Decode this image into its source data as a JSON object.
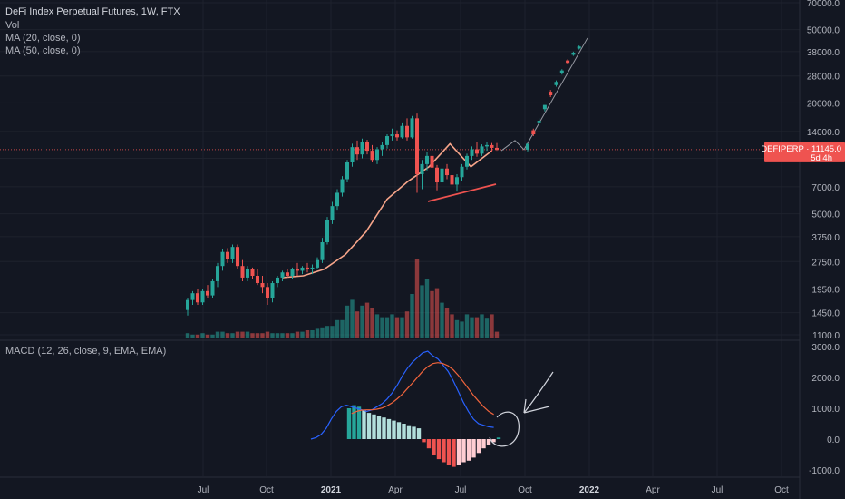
{
  "header": {
    "title": "DeFi Index Perpetual Futures, 1W, FTX",
    "vol_label": "Vol",
    "ma20_label": "MA (20, close, 0)",
    "ma50_label": "MA (50, close, 0)",
    "macd_label": "MACD (12, 26, close, 9, EMA, EMA)"
  },
  "price_tag": {
    "symbol_price": "DEFIPERP  ·  11145.0",
    "countdown": "5d 4h"
  },
  "colors": {
    "background": "#131722",
    "up": "#26a69a",
    "down": "#ef5350",
    "ma_line": "#f7a58a",
    "macd_line": "#2962ff",
    "signal_line": "#f0643c",
    "drawing": "#9598a1",
    "price_tag": "#ef5350"
  },
  "chart_data": {
    "type": "candlestick",
    "price_scale": "log",
    "y_ticks": [
      "70000.0",
      "50000.0",
      "38000.0",
      "28000.0",
      "20000.0",
      "14000.0",
      "10000.0",
      "7000.0",
      "5000.0",
      "3750.0",
      "2750.0",
      "1950.0",
      "1450.0",
      "1100.0"
    ],
    "x_ticks": [
      "Jul",
      "Oct",
      "2021",
      "Apr",
      "Jul",
      "Oct",
      "2022",
      "Apr",
      "Jul",
      "Oct"
    ],
    "candles": [
      {
        "o": 1500,
        "h": 1750,
        "l": 1400,
        "c": 1700
      },
      {
        "o": 1700,
        "h": 1900,
        "l": 1600,
        "c": 1850
      },
      {
        "o": 1850,
        "h": 1950,
        "l": 1600,
        "c": 1650
      },
      {
        "o": 1650,
        "h": 1950,
        "l": 1600,
        "c": 1900
      },
      {
        "o": 1900,
        "h": 2050,
        "l": 1750,
        "c": 1800
      },
      {
        "o": 1800,
        "h": 2200,
        "l": 1750,
        "c": 2150
      },
      {
        "o": 2150,
        "h": 2700,
        "l": 2000,
        "c": 2600
      },
      {
        "o": 2600,
        "h": 3200,
        "l": 2450,
        "c": 3100
      },
      {
        "o": 3100,
        "h": 3250,
        "l": 2700,
        "c": 2850
      },
      {
        "o": 2850,
        "h": 3400,
        "l": 2700,
        "c": 3300
      },
      {
        "o": 3300,
        "h": 3400,
        "l": 2500,
        "c": 2600
      },
      {
        "o": 2600,
        "h": 2800,
        "l": 2150,
        "c": 2250
      },
      {
        "o": 2250,
        "h": 2600,
        "l": 2150,
        "c": 2500
      },
      {
        "o": 2500,
        "h": 2550,
        "l": 2200,
        "c": 2300
      },
      {
        "o": 2300,
        "h": 2500,
        "l": 2050,
        "c": 2100
      },
      {
        "o": 2100,
        "h": 2300,
        "l": 1850,
        "c": 2000
      },
      {
        "o": 2000,
        "h": 2100,
        "l": 1600,
        "c": 1750
      },
      {
        "o": 1750,
        "h": 2150,
        "l": 1650,
        "c": 2100
      },
      {
        "o": 2100,
        "h": 2300,
        "l": 2000,
        "c": 2250
      },
      {
        "o": 2250,
        "h": 2450,
        "l": 2150,
        "c": 2400
      },
      {
        "o": 2400,
        "h": 2500,
        "l": 2250,
        "c": 2300
      },
      {
        "o": 2300,
        "h": 2550,
        "l": 2200,
        "c": 2500
      },
      {
        "o": 2500,
        "h": 2700,
        "l": 2300,
        "c": 2450
      },
      {
        "o": 2450,
        "h": 2600,
        "l": 2350,
        "c": 2550
      },
      {
        "o": 2550,
        "h": 2700,
        "l": 2400,
        "c": 2500
      },
      {
        "o": 2500,
        "h": 2650,
        "l": 2350,
        "c": 2550
      },
      {
        "o": 2550,
        "h": 2900,
        "l": 2500,
        "c": 2800
      },
      {
        "o": 2800,
        "h": 3700,
        "l": 2700,
        "c": 3500
      },
      {
        "o": 3500,
        "h": 4800,
        "l": 3400,
        "c": 4600
      },
      {
        "o": 4600,
        "h": 5800,
        "l": 4400,
        "c": 5500
      },
      {
        "o": 5500,
        "h": 6800,
        "l": 5200,
        "c": 6500
      },
      {
        "o": 6500,
        "h": 8000,
        "l": 6200,
        "c": 7700
      },
      {
        "o": 7700,
        "h": 9800,
        "l": 7400,
        "c": 9500
      },
      {
        "o": 9500,
        "h": 12000,
        "l": 9000,
        "c": 11500
      },
      {
        "o": 11500,
        "h": 12500,
        "l": 9800,
        "c": 10500
      },
      {
        "o": 10500,
        "h": 12800,
        "l": 10000,
        "c": 12200
      },
      {
        "o": 12200,
        "h": 12600,
        "l": 10500,
        "c": 11000
      },
      {
        "o": 11000,
        "h": 11800,
        "l": 9500,
        "c": 9800
      },
      {
        "o": 9800,
        "h": 11500,
        "l": 9300,
        "c": 11200
      },
      {
        "o": 11200,
        "h": 12300,
        "l": 10300,
        "c": 11800
      },
      {
        "o": 11800,
        "h": 13500,
        "l": 11300,
        "c": 13200
      },
      {
        "o": 13200,
        "h": 14500,
        "l": 12500,
        "c": 13500
      },
      {
        "o": 13500,
        "h": 14200,
        "l": 12500,
        "c": 13000
      },
      {
        "o": 13000,
        "h": 15500,
        "l": 12800,
        "c": 15000
      },
      {
        "o": 15000,
        "h": 16500,
        "l": 12500,
        "c": 13000
      },
      {
        "o": 13000,
        "h": 17000,
        "l": 12800,
        "c": 16500
      },
      {
        "o": 16500,
        "h": 17500,
        "l": 6500,
        "c": 8200
      },
      {
        "o": 8200,
        "h": 9800,
        "l": 6800,
        "c": 9300
      },
      {
        "o": 9300,
        "h": 10800,
        "l": 8600,
        "c": 10300
      },
      {
        "o": 10300,
        "h": 10600,
        "l": 8600,
        "c": 8900
      },
      {
        "o": 8900,
        "h": 9200,
        "l": 6700,
        "c": 7400
      },
      {
        "o": 7400,
        "h": 9100,
        "l": 6300,
        "c": 8800
      },
      {
        "o": 8800,
        "h": 9300,
        "l": 7700,
        "c": 8100
      },
      {
        "o": 8100,
        "h": 8600,
        "l": 6800,
        "c": 7200
      },
      {
        "o": 7200,
        "h": 8200,
        "l": 6600,
        "c": 7900
      },
      {
        "o": 7900,
        "h": 9300,
        "l": 7500,
        "c": 9000
      },
      {
        "o": 9000,
        "h": 10600,
        "l": 8700,
        "c": 10300
      },
      {
        "o": 10300,
        "h": 11600,
        "l": 9800,
        "c": 11200
      },
      {
        "o": 11200,
        "h": 12200,
        "l": 10200,
        "c": 10600
      },
      {
        "o": 10600,
        "h": 11900,
        "l": 10300,
        "c": 11600
      },
      {
        "o": 11600,
        "h": 12200,
        "l": 11000,
        "c": 11800
      },
      {
        "o": 11800,
        "h": 12100,
        "l": 10800,
        "c": 11400
      },
      {
        "o": 11400,
        "h": 12100,
        "l": 11000,
        "c": 11145
      }
    ],
    "volume": [
      3,
      2,
      2,
      3,
      2,
      2,
      4,
      4,
      3,
      3,
      4,
      4,
      4,
      3,
      3,
      3,
      4,
      3,
      3,
      3,
      3,
      3,
      4,
      4,
      5,
      5,
      6,
      7,
      8,
      8,
      12,
      12,
      22,
      26,
      18,
      22,
      24,
      20,
      16,
      14,
      14,
      16,
      14,
      14,
      18,
      30,
      54,
      36,
      40,
      32,
      34,
      24,
      20,
      16,
      12,
      11,
      16,
      14,
      14,
      16,
      13,
      16,
      4
    ],
    "ma_curve": [
      [
        2250,
        2300
      ],
      [
        2300,
        2400
      ],
      [
        2500,
        2550
      ],
      [
        3000,
        3300
      ],
      [
        4000,
        5500
      ],
      [
        6000,
        8000
      ],
      [
        7500,
        10500
      ],
      [
        9000,
        12500
      ],
      [
        12000,
        11500
      ],
      [
        9000,
        11000
      ],
      [
        11000,
        11500
      ]
    ],
    "forecast": [
      {
        "o": 11145,
        "h": 11600,
        "l": 10900,
        "c": 12000
      },
      {
        "o": 13500,
        "h": 14500,
        "l": 13200,
        "c": 14200
      },
      {
        "o": 15500,
        "h": 16500,
        "l": 15200,
        "c": 16000
      },
      {
        "o": 18500,
        "h": 19500,
        "l": 18000,
        "c": 19500
      },
      {
        "o": 22000,
        "h": 23500,
        "l": 21500,
        "c": 23000
      },
      {
        "o": 25000,
        "h": 26500,
        "l": 24500,
        "c": 26000
      },
      {
        "o": 29000,
        "h": 30500,
        "l": 28500,
        "c": 30000
      },
      {
        "o": 33000,
        "h": 34500,
        "l": 32500,
        "c": 34000
      },
      {
        "o": 36500,
        "h": 38000,
        "l": 36000,
        "c": 37500
      },
      {
        "o": 39500,
        "h": 41000,
        "l": 39000,
        "c": 40500
      }
    ],
    "macd_ticks": [
      "3000.0",
      "2000.0",
      "1000.0",
      "0.0",
      "-1000.0"
    ],
    "macd_line": [
      0,
      50,
      150,
      350,
      650,
      900,
      1050,
      1100,
      1050,
      1000,
      950,
      900,
      950,
      1050,
      1150,
      1300,
      1500,
      1750,
      2050,
      2300,
      2500,
      2650,
      2800,
      2850,
      2700,
      2600,
      2400,
      2200,
      1900,
      1550,
      1200,
      900,
      650,
      500,
      450,
      400,
      380
    ],
    "signal_line": [
      0,
      20,
      60,
      140,
      260,
      420,
      580,
      720,
      830,
      900,
      940,
      950,
      950,
      970,
      1010,
      1080,
      1180,
      1310,
      1460,
      1640,
      1820,
      2010,
      2200,
      2350,
      2450,
      2480,
      2450,
      2380,
      2250,
      2070,
      1860,
      1640,
      1420,
      1230,
      1050,
      900,
      800
    ],
    "histogram": [
      1000,
      1100,
      1050,
      950,
      850,
      800,
      750,
      700,
      650,
      600,
      550,
      500,
      450,
      400,
      350,
      -100,
      -300,
      -500,
      -650,
      -750,
      -850,
      -900,
      -850,
      -750,
      -700,
      -600,
      -450,
      -300,
      -200,
      -100,
      50
    ]
  }
}
